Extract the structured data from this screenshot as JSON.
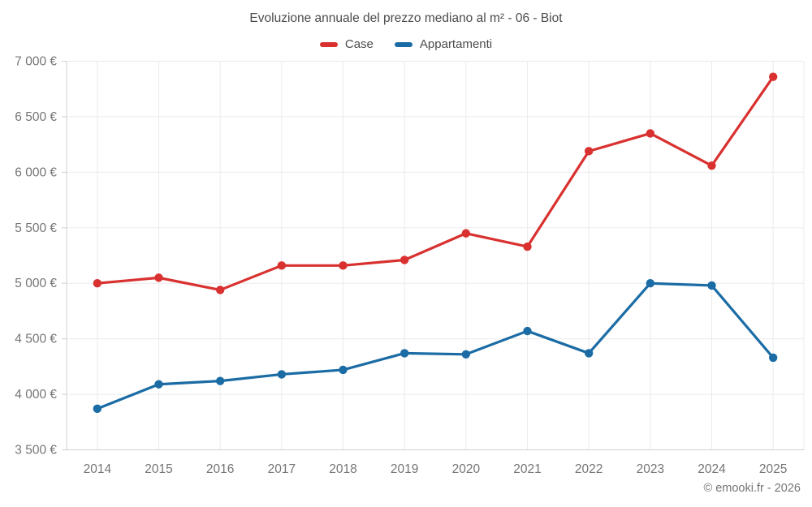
{
  "title": "Evoluzione annuale del prezzo mediano al m² - 06 - Biot",
  "footer": "© emooki.fr - 2026",
  "legend": {
    "items": [
      {
        "label": "Case",
        "color": "#d8312f"
      },
      {
        "label": "Appartamenti",
        "color": "#1b6ca5"
      }
    ]
  },
  "colors": {
    "grid": "#ebebeb",
    "axis": "#d0d0d0",
    "tick_text": "#757575",
    "title_text": "#4c4c4c",
    "background": "#ffffff"
  },
  "chart_data": {
    "type": "line",
    "title": "Evoluzione annuale del prezzo mediano al m² - 06 - Biot",
    "xlabel": "",
    "ylabel": "",
    "categories": [
      "2014",
      "2015",
      "2016",
      "2017",
      "2018",
      "2019",
      "2020",
      "2021",
      "2022",
      "2023",
      "2024",
      "2025"
    ],
    "series": [
      {
        "name": "Case",
        "color": "#d8312f",
        "values": [
          5000,
          5050,
          4940,
          5160,
          5160,
          5210,
          5450,
          5330,
          6190,
          6350,
          6060,
          6860
        ]
      },
      {
        "name": "Appartamenti",
        "color": "#1b6ca5",
        "values": [
          3870,
          4090,
          4120,
          4180,
          4220,
          4370,
          4360,
          4570,
          4370,
          5000,
          4980,
          4330
        ]
      }
    ],
    "ylim": [
      3500,
      7000
    ],
    "y_tick_values": [
      3500,
      4000,
      4500,
      5000,
      5500,
      6000,
      6500,
      7000
    ],
    "y_tick_labels": [
      "3 500 €",
      "4 000 €",
      "4 500 €",
      "5 000 €",
      "5 500 €",
      "6 000 €",
      "6 500 €",
      "7 000 €"
    ],
    "grid": true,
    "legend_position": "top",
    "currency_suffix": " €"
  }
}
